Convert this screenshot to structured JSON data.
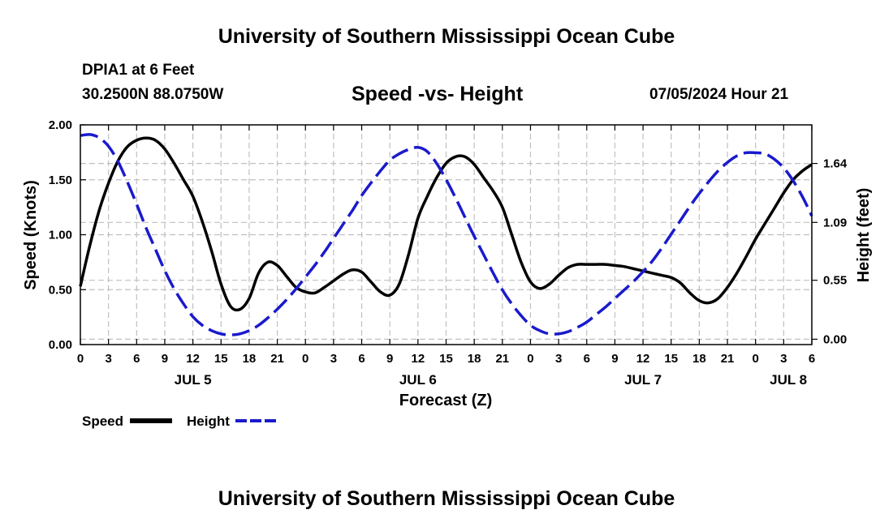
{
  "header": {
    "title": "University of Southern Mississippi Ocean Cube",
    "station": "DPIA1 at 6 Feet",
    "coords": "30.2500N  88.0750W",
    "subtitle": "Speed -vs- Height",
    "datetime": "07/05/2024 Hour 21"
  },
  "footer": {
    "title": "University of Southern Mississippi Ocean Cube"
  },
  "colors": {
    "speed": "#000000",
    "height": "#1a1acc",
    "grid": "#c0c0c0"
  },
  "chart_data": {
    "type": "line",
    "xlabel": "Forecast (Z)",
    "ylabel": "Speed (Knots)",
    "y2label": "Height (feet)",
    "x_unit": "hours since JUL 5 00Z",
    "xlim": [
      0,
      78
    ],
    "ylim": [
      0,
      2.0
    ],
    "y2lim": [
      -0.05,
      2.0
    ],
    "x_ticks": [
      0,
      3,
      6,
      9,
      12,
      15,
      18,
      21,
      24,
      27,
      30,
      33,
      36,
      39,
      42,
      45,
      48,
      51,
      54,
      57,
      60,
      63,
      66,
      69,
      72,
      75,
      78
    ],
    "x_tick_labels": [
      "0",
      "3",
      "6",
      "9",
      "12",
      "15",
      "18",
      "21",
      "0",
      "3",
      "6",
      "9",
      "12",
      "15",
      "18",
      "21",
      "0",
      "3",
      "6",
      "9",
      "12",
      "15",
      "18",
      "21",
      "0",
      "3",
      "6"
    ],
    "y_ticks": [
      0.0,
      0.5,
      1.0,
      1.5,
      2.0
    ],
    "y_tick_labels": [
      "0.00",
      "0.50",
      "1.00",
      "1.50",
      "2.00"
    ],
    "y2_ticks": [
      0.0,
      0.55,
      1.09,
      1.64
    ],
    "y2_tick_labels": [
      "0.00",
      "0.55",
      "1.09",
      "1.64"
    ],
    "day_labels": [
      {
        "x": 12,
        "label": "JUL 5"
      },
      {
        "x": 36,
        "label": "JUL 6"
      },
      {
        "x": 60,
        "label": "JUL 7"
      },
      {
        "x": 75.5,
        "label": "JUL 8"
      }
    ],
    "series": [
      {
        "name": "Speed",
        "axis": "left",
        "style": "solid",
        "x": [
          0,
          1,
          2,
          3,
          4,
          5,
          6,
          7,
          8,
          9,
          10,
          11,
          12,
          13,
          14,
          15,
          16,
          17,
          18,
          19,
          20,
          21,
          22,
          23,
          24,
          25,
          26,
          27,
          28,
          29,
          30,
          31,
          32,
          33,
          34,
          35,
          36,
          37,
          38,
          39,
          40,
          41,
          42,
          43,
          44,
          45,
          46,
          47,
          48,
          49,
          50,
          51,
          52,
          53,
          54,
          55,
          56,
          57,
          58,
          59,
          60,
          61,
          62,
          63,
          64,
          65,
          66,
          67,
          68,
          69,
          70,
          71,
          72,
          73,
          74,
          75,
          76,
          77,
          78
        ],
        "values": [
          0.53,
          0.9,
          1.22,
          1.47,
          1.67,
          1.8,
          1.86,
          1.88,
          1.86,
          1.78,
          1.65,
          1.5,
          1.35,
          1.12,
          0.85,
          0.55,
          0.35,
          0.32,
          0.42,
          0.65,
          0.75,
          0.72,
          0.62,
          0.52,
          0.48,
          0.47,
          0.52,
          0.58,
          0.64,
          0.68,
          0.66,
          0.57,
          0.48,
          0.45,
          0.55,
          0.82,
          1.15,
          1.35,
          1.52,
          1.65,
          1.71,
          1.71,
          1.64,
          1.52,
          1.4,
          1.25,
          1.0,
          0.75,
          0.57,
          0.51,
          0.55,
          0.63,
          0.7,
          0.73,
          0.73,
          0.73,
          0.73,
          0.72,
          0.71,
          0.69,
          0.67,
          0.65,
          0.63,
          0.61,
          0.56,
          0.47,
          0.4,
          0.38,
          0.42,
          0.52,
          0.65,
          0.8,
          0.96,
          1.1,
          1.24,
          1.38,
          1.5,
          1.58,
          1.64
        ]
      },
      {
        "name": "Height",
        "axis": "right",
        "style": "dashed",
        "x": [
          0,
          1,
          2,
          3,
          4,
          5,
          6,
          7,
          8,
          9,
          10,
          11,
          12,
          13,
          14,
          15,
          16,
          17,
          18,
          19,
          20,
          21,
          22,
          23,
          24,
          25,
          26,
          27,
          28,
          29,
          30,
          31,
          32,
          33,
          34,
          35,
          36,
          37,
          38,
          39,
          40,
          41,
          42,
          43,
          44,
          45,
          46,
          47,
          48,
          49,
          50,
          51,
          52,
          53,
          54,
          55,
          56,
          57,
          58,
          59,
          60,
          61,
          62,
          63,
          64,
          65,
          66,
          67,
          68,
          69,
          70,
          71,
          72,
          73,
          74,
          75,
          76,
          77,
          78
        ],
        "values": [
          1.9,
          1.91,
          1.88,
          1.8,
          1.66,
          1.47,
          1.26,
          1.04,
          0.84,
          0.64,
          0.47,
          0.33,
          0.21,
          0.13,
          0.08,
          0.05,
          0.04,
          0.05,
          0.08,
          0.13,
          0.2,
          0.28,
          0.37,
          0.47,
          0.58,
          0.69,
          0.81,
          0.94,
          1.07,
          1.2,
          1.34,
          1.46,
          1.57,
          1.67,
          1.73,
          1.77,
          1.79,
          1.75,
          1.64,
          1.49,
          1.32,
          1.14,
          0.96,
          0.79,
          0.62,
          0.46,
          0.33,
          0.22,
          0.13,
          0.08,
          0.05,
          0.05,
          0.07,
          0.11,
          0.16,
          0.23,
          0.3,
          0.38,
          0.46,
          0.54,
          0.63,
          0.73,
          0.85,
          0.98,
          1.11,
          1.24,
          1.36,
          1.47,
          1.57,
          1.65,
          1.71,
          1.74,
          1.74,
          1.73,
          1.68,
          1.6,
          1.48,
          1.33,
          1.15
        ]
      }
    ],
    "legend": [
      {
        "label": "Speed",
        "style": "solid"
      },
      {
        "label": "Height",
        "style": "dashed"
      }
    ],
    "grid": true
  }
}
